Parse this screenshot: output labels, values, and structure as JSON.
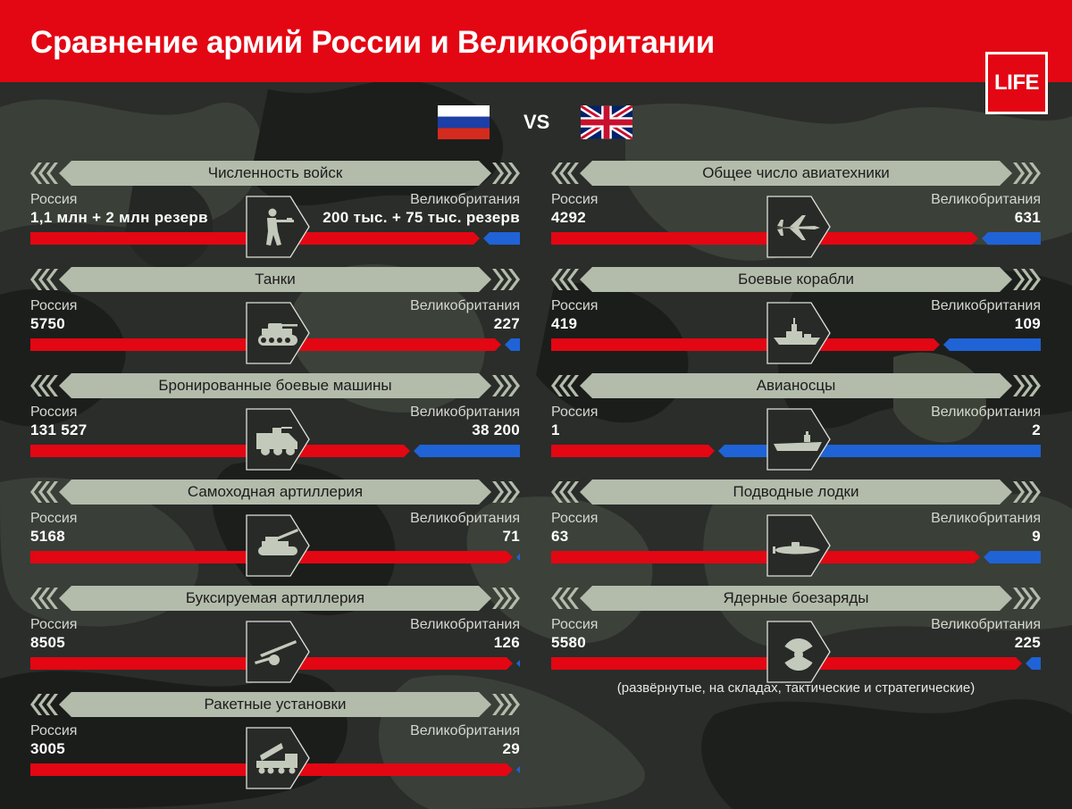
{
  "title": "Сравнение армий России и Великобритании",
  "logo": "LIFE",
  "vs": "VS",
  "colors": {
    "russia": "#e30613",
    "uk": "#1f63d6",
    "banner": "#b3bcab",
    "icon": "#c3cabb",
    "header": "#e30613"
  },
  "chart_data": {
    "type": "bar",
    "series": [
      {
        "name": "Россия",
        "color": "#e30613"
      },
      {
        "name": "Великобритания",
        "color": "#1f63d6"
      }
    ],
    "metrics": [
      {
        "title": "Численность войск",
        "icon": "soldier-icon",
        "left_label": "Россия",
        "right_label": "Великобритания",
        "russia_text": "1,1 млн + 2 млн резерв",
        "uk_text": "200 тыс. + 75 тыс. резерв",
        "russia": 3100000,
        "uk": 275000
      },
      {
        "title": "Танки",
        "icon": "tank-icon",
        "left_label": "Россия",
        "right_label": "Великобритания",
        "russia_text": "5750",
        "uk_text": "227",
        "russia": 5750,
        "uk": 227
      },
      {
        "title": "Бронированные боевые машины",
        "icon": "armored-vehicle-icon",
        "left_label": "Россия",
        "right_label": "Великобритания",
        "russia_text": "131 527",
        "uk_text": "38 200",
        "russia": 131527,
        "uk": 38200
      },
      {
        "title": "Самоходная артиллерия",
        "icon": "self-propelled-artillery-icon",
        "left_label": "Россия",
        "right_label": "Великобритания",
        "russia_text": "5168",
        "uk_text": "71",
        "russia": 5168,
        "uk": 71
      },
      {
        "title": "Буксируемая артиллерия",
        "icon": "towed-artillery-icon",
        "left_label": "Россия",
        "right_label": "Великобритания",
        "russia_text": "8505",
        "uk_text": "126",
        "russia": 8505,
        "uk": 126
      },
      {
        "title": "Ракетные установки",
        "icon": "rocket-launcher-icon",
        "left_label": "Россия",
        "right_label": "Великобритания",
        "russia_text": "3005",
        "uk_text": "29",
        "russia": 3005,
        "uk": 29
      },
      {
        "title": "Общее число авиатехники",
        "icon": "jet-icon",
        "left_label": "Россия",
        "right_label": "Великобритания",
        "russia_text": "4292",
        "uk_text": "631",
        "russia": 4292,
        "uk": 631
      },
      {
        "title": "Боевые корабли",
        "icon": "warship-icon",
        "left_label": "Россия",
        "right_label": "Великобритания",
        "russia_text": "419",
        "uk_text": "109",
        "russia": 419,
        "uk": 109
      },
      {
        "title": "Авианосцы",
        "icon": "aircraft-carrier-icon",
        "left_label": "Россия",
        "right_label": "Великобритания",
        "russia_text": "1",
        "uk_text": "2",
        "russia": 1,
        "uk": 2
      },
      {
        "title": "Подводные лодки",
        "icon": "submarine-icon",
        "left_label": "Россия",
        "right_label": "Великобритания",
        "russia_text": "63",
        "uk_text": "9",
        "russia": 63,
        "uk": 9
      },
      {
        "title": "Ядерные боезаряды",
        "icon": "radiation-icon",
        "left_label": "Россия",
        "right_label": "Великобритания",
        "russia_text": "5580",
        "uk_text": "225",
        "russia": 5580,
        "uk": 225
      }
    ]
  },
  "footnote": "(развёрнутые, на складах, тактические и стратегические)"
}
